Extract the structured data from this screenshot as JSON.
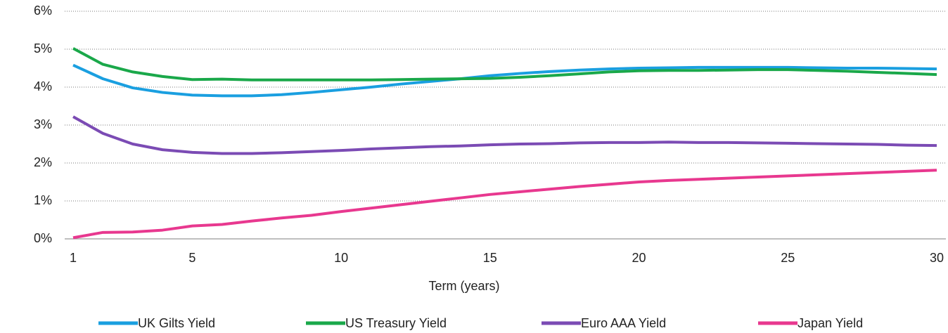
{
  "chart_data": {
    "type": "line",
    "x_label": "Term (years)",
    "x": [
      1,
      2,
      3,
      4,
      5,
      6,
      7,
      8,
      9,
      10,
      11,
      12,
      13,
      14,
      15,
      16,
      17,
      18,
      19,
      20,
      21,
      22,
      23,
      24,
      25,
      26,
      27,
      28,
      29,
      30
    ],
    "xlim": [
      1,
      30
    ],
    "xticks": [
      1,
      5,
      10,
      15,
      20,
      25,
      30
    ],
    "ylim": [
      0,
      6
    ],
    "yticks": [
      {
        "value": 0,
        "label": "0%"
      },
      {
        "value": 1,
        "label": "1%"
      },
      {
        "value": 2,
        "label": "2%"
      },
      {
        "value": 3,
        "label": "3%"
      },
      {
        "value": 4,
        "label": "4%"
      },
      {
        "value": 5,
        "label": "5%"
      },
      {
        "value": 6,
        "label": "6%"
      }
    ],
    "grid": true,
    "legend": "bottom",
    "series": [
      {
        "name": "UK Gilts Yield",
        "color": "#1a9fe0",
        "values": [
          4.58,
          4.22,
          3.98,
          3.86,
          3.79,
          3.77,
          3.77,
          3.8,
          3.86,
          3.93,
          4.0,
          4.08,
          4.15,
          4.22,
          4.3,
          4.36,
          4.41,
          4.45,
          4.48,
          4.5,
          4.51,
          4.52,
          4.52,
          4.52,
          4.52,
          4.51,
          4.5,
          4.5,
          4.49,
          4.48
        ]
      },
      {
        "name": "US Treasury Yield",
        "color": "#1aa84a",
        "values": [
          5.02,
          4.6,
          4.4,
          4.28,
          4.2,
          4.21,
          4.19,
          4.19,
          4.19,
          4.19,
          4.19,
          4.2,
          4.21,
          4.22,
          4.23,
          4.26,
          4.3,
          4.35,
          4.4,
          4.43,
          4.44,
          4.44,
          4.45,
          4.46,
          4.46,
          4.44,
          4.42,
          4.39,
          4.36,
          4.33
        ]
      },
      {
        "name": "Euro AAA Yield",
        "color": "#7b4bb4",
        "values": [
          3.22,
          2.78,
          2.5,
          2.35,
          2.28,
          2.25,
          2.25,
          2.27,
          2.3,
          2.33,
          2.37,
          2.4,
          2.43,
          2.45,
          2.48,
          2.5,
          2.51,
          2.53,
          2.54,
          2.54,
          2.55,
          2.54,
          2.54,
          2.53,
          2.52,
          2.51,
          2.5,
          2.49,
          2.47,
          2.46
        ]
      },
      {
        "name": "Japan Yield",
        "color": "#e8388f",
        "values": [
          0.03,
          0.17,
          0.18,
          0.23,
          0.34,
          0.38,
          0.47,
          0.55,
          0.62,
          0.72,
          0.81,
          0.9,
          0.99,
          1.08,
          1.17,
          1.24,
          1.31,
          1.38,
          1.44,
          1.5,
          1.54,
          1.57,
          1.6,
          1.63,
          1.66,
          1.69,
          1.72,
          1.75,
          1.78,
          1.81
        ]
      }
    ]
  }
}
